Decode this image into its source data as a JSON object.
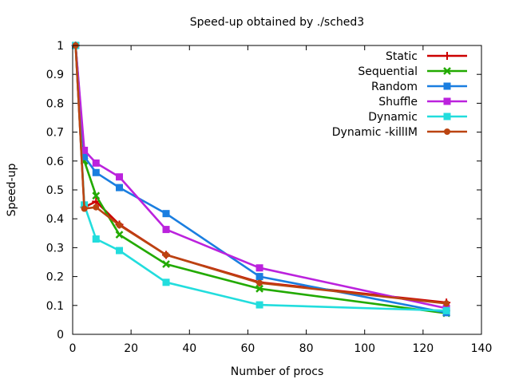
{
  "chart_data": {
    "type": "line",
    "title": "Speed-up obtained by ./sched3",
    "xlabel": "Number of procs",
    "ylabel": "Speed-up",
    "xlim": [
      0,
      140
    ],
    "ylim": [
      0,
      1
    ],
    "xticks": [
      "0",
      "20",
      "40",
      "60",
      "80",
      "100",
      "120",
      "140"
    ],
    "yticks": [
      "0",
      "0.1",
      "0.2",
      "0.3",
      "0.4",
      "0.5",
      "0.6",
      "0.7",
      "0.8",
      "0.9",
      "1"
    ],
    "legend_position": "top-right",
    "x": [
      1,
      4,
      8,
      16,
      32,
      64,
      128
    ],
    "series": [
      {
        "name": "Static",
        "color": "#cc0000",
        "marker": "plus",
        "values": [
          1.0,
          0.44,
          0.46,
          0.38,
          0.275,
          0.18,
          0.11
        ]
      },
      {
        "name": "Sequential",
        "color": "#22aa00",
        "marker": "cross",
        "values": [
          1.0,
          0.6,
          0.48,
          0.345,
          0.243,
          0.158,
          0.073
        ]
      },
      {
        "name": "Random",
        "color": "#1a7ee0",
        "marker": "square",
        "values": [
          1.0,
          0.615,
          0.56,
          0.508,
          0.418,
          0.2,
          0.075
        ]
      },
      {
        "name": "Shuffle",
        "color": "#bb22dd",
        "marker": "square",
        "values": [
          1.0,
          0.637,
          0.593,
          0.545,
          0.363,
          0.23,
          0.09
        ]
      },
      {
        "name": "Dynamic",
        "color": "#22dddd",
        "marker": "square",
        "values": [
          1.0,
          0.448,
          0.33,
          0.29,
          0.18,
          0.102,
          0.082
        ]
      },
      {
        "name": "Dynamic -killIM",
        "color": "#bb4411",
        "marker": "circle",
        "values": [
          1.0,
          0.435,
          0.44,
          0.378,
          0.275,
          0.178,
          0.107
        ]
      }
    ]
  }
}
